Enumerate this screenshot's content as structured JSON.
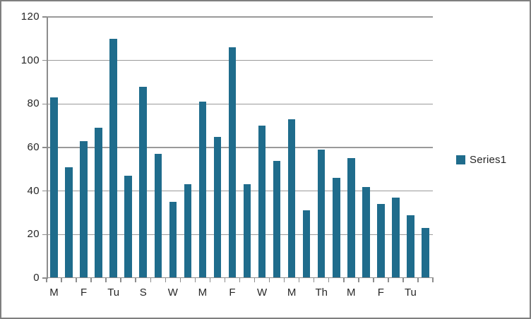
{
  "chart_data": {
    "type": "bar",
    "title": "",
    "series": [
      {
        "name": "Series1",
        "values": [
          83,
          51,
          63,
          69,
          110,
          47,
          88,
          57,
          35,
          43,
          81,
          65,
          106,
          43,
          70,
          54,
          73,
          31,
          59,
          46,
          55,
          42,
          34,
          37,
          29,
          23
        ]
      }
    ],
    "x_tick_labels": [
      "M",
      "F",
      "Tu",
      "S",
      "W",
      "M",
      "F",
      "W",
      "M",
      "Th",
      "M",
      "F",
      "Tu"
    ],
    "x_label_interval": 2,
    "ylim": [
      0,
      120
    ],
    "yticks": [
      0,
      20,
      40,
      60,
      80,
      100,
      120
    ],
    "grid": true,
    "legend": {
      "label": "Series1",
      "position": "right"
    },
    "colors": {
      "bar": "#1f6c8c",
      "gridline": "#9a9a9a",
      "axis": "#8c8c8c",
      "text": "#262626",
      "frame_border": "#7f7f7f",
      "background": "#ffffff"
    }
  }
}
